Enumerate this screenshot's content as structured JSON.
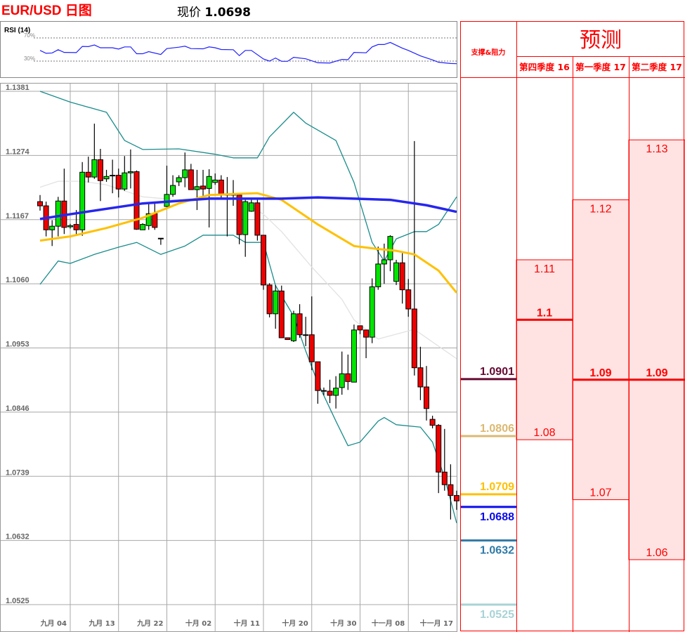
{
  "header": {
    "title": "EUR/USD 日图",
    "price_label": "现价",
    "price_value": "1.0698"
  },
  "rsi": {
    "label": "RSI (14)",
    "levels": [
      {
        "value": 70,
        "label": "70%"
      },
      {
        "value": 30,
        "label": "30%"
      }
    ],
    "color": "#2020ff",
    "points": [
      [
        1,
        48.4
      ],
      [
        2,
        43.5
      ],
      [
        3,
        44
      ],
      [
        4,
        49.6
      ],
      [
        5,
        45
      ],
      [
        7,
        44.7
      ],
      [
        8,
        55.3
      ],
      [
        9,
        55
      ],
      [
        10,
        57.8
      ],
      [
        11,
        53
      ],
      [
        13,
        53
      ],
      [
        14,
        50.8
      ],
      [
        15,
        54.5
      ],
      [
        16,
        54.5
      ],
      [
        17,
        42.7
      ],
      [
        18,
        42.7
      ],
      [
        19,
        46.3
      ],
      [
        21,
        41.4
      ],
      [
        22,
        51.6
      ],
      [
        24,
        54
      ],
      [
        25,
        55.7
      ],
      [
        26,
        51.6
      ],
      [
        28,
        51.2
      ],
      [
        29,
        54.5
      ],
      [
        30,
        53
      ],
      [
        31,
        50
      ],
      [
        33,
        49.6
      ],
      [
        34,
        39.4
      ],
      [
        35,
        48.4
      ],
      [
        36,
        48.4
      ],
      [
        38,
        33.7
      ],
      [
        39,
        30
      ],
      [
        40,
        35.3
      ],
      [
        41,
        29.6
      ],
      [
        42,
        29.6
      ],
      [
        43,
        36.5
      ],
      [
        45,
        34
      ],
      [
        47,
        27.1
      ],
      [
        49,
        26.7
      ],
      [
        51,
        32.9
      ],
      [
        52,
        32.4
      ],
      [
        53,
        45
      ],
      [
        55,
        44.3
      ],
      [
        56,
        54.5
      ],
      [
        57,
        58.6
      ],
      [
        58,
        58.6
      ],
      [
        59,
        62.2
      ],
      [
        61,
        52.4
      ],
      [
        62,
        48.4
      ],
      [
        64,
        39
      ],
      [
        66,
        32
      ],
      [
        67,
        28
      ],
      [
        69,
        25.9
      ],
      [
        70,
        25.5
      ]
    ]
  },
  "chart_data": {
    "type": "candlestick",
    "ylim": [
      1.0525,
      1.1381
    ],
    "yticks": [
      "1.1381",
      "1.1274",
      "1.1167",
      "1.1060",
      "1.0953",
      "1.0846",
      "1.0739",
      "1.0632",
      "1.0525"
    ],
    "xticks": [
      {
        "candle": 6,
        "label": "九月 04"
      },
      {
        "candle": 14,
        "label": "九月 13"
      },
      {
        "candle": 22,
        "label": "九月 22"
      },
      {
        "candle": 30,
        "label": "十月 02"
      },
      {
        "candle": 38,
        "label": "十月 11"
      },
      {
        "candle": 46,
        "label": "十月 20"
      },
      {
        "candle": 54,
        "label": "十月 30"
      },
      {
        "candle": 62,
        "label": "十一月 08"
      },
      {
        "candle": 70,
        "label": "十一月 17"
      }
    ],
    "grid": true,
    "candle_fields": [
      "open",
      "high",
      "low",
      "close"
    ],
    "up_color": "#00e600",
    "down_color": "#ee0000",
    "candles": [
      [
        1.1197,
        1.1208,
        1.1182,
        1.119
      ],
      [
        1.119,
        1.1197,
        1.1139,
        1.115
      ],
      [
        1.115,
        1.1166,
        1.1123,
        1.1156
      ],
      [
        1.1156,
        1.1205,
        1.1139,
        1.1198
      ],
      [
        1.1198,
        1.1252,
        1.1143,
        1.1154
      ],
      [
        1.1155,
        1.116,
        1.1152,
        1.1157
      ],
      [
        1.1159,
        1.1183,
        1.114,
        1.115
      ],
      [
        1.115,
        1.1263,
        1.114,
        1.1246
      ],
      [
        1.1246,
        1.1272,
        1.1229,
        1.1238
      ],
      [
        1.1238,
        1.1327,
        1.1235,
        1.1267
      ],
      [
        1.1267,
        1.1285,
        1.1198,
        1.1232
      ],
      [
        1.1235,
        1.125,
        1.123,
        1.1239
      ],
      [
        1.1241,
        1.1267,
        1.1211,
        1.124
      ],
      [
        1.1241,
        1.1252,
        1.1204,
        1.1218
      ],
      [
        1.1218,
        1.1273,
        1.1215,
        1.1245
      ],
      [
        1.1245,
        1.1284,
        1.1219,
        1.1247
      ],
      [
        1.1247,
        1.1249,
        1.115,
        1.1151
      ],
      [
        1.115,
        1.1161,
        1.115,
        1.1159
      ],
      [
        1.1157,
        1.1196,
        1.115,
        1.1177
      ],
      [
        1.1177,
        1.1196,
        1.115,
        1.1154
      ],
      [
        1.1136,
        1.1136,
        1.1125,
        1.1136
      ],
      [
        1.1189,
        1.1257,
        1.1185,
        1.1209
      ],
      [
        1.1209,
        1.1241,
        1.1205,
        1.1224
      ],
      [
        1.123,
        1.1241,
        1.1223,
        1.1237
      ],
      [
        1.1237,
        1.1279,
        1.1221,
        1.125
      ],
      [
        1.125,
        1.126,
        1.1217,
        1.1217
      ],
      [
        1.1217,
        1.125,
        1.1183,
        1.1222
      ],
      [
        1.1223,
        1.125,
        1.1205,
        1.1218
      ],
      [
        1.1219,
        1.1251,
        1.1154,
        1.1239
      ],
      [
        1.1229,
        1.1244,
        1.1225,
        1.1233
      ],
      [
        1.1233,
        1.1241,
        1.1202,
        1.1209
      ],
      [
        1.1209,
        1.1238,
        1.1139,
        1.1208
      ],
      [
        1.1209,
        1.1233,
        1.119,
        1.1208
      ],
      [
        1.1208,
        1.1209,
        1.1126,
        1.1142
      ],
      [
        1.1142,
        1.12,
        1.1105,
        1.1197
      ],
      [
        1.1181,
        1.12,
        1.118,
        1.1195
      ],
      [
        1.1195,
        1.12,
        1.1132,
        1.1141
      ],
      [
        1.1141,
        1.1141,
        1.105,
        1.1058
      ],
      [
        1.1058,
        1.1061,
        1.1004,
        1.101
      ],
      [
        1.101,
        1.1058,
        1.0985,
        1.1048
      ],
      [
        1.1048,
        1.1057,
        1.097,
        1.097
      ],
      [
        1.097,
        1.097,
        1.0967,
        1.0967
      ],
      [
        1.0965,
        1.1015,
        1.0963,
        1.101
      ],
      [
        1.101,
        1.1026,
        1.097,
        1.0975
      ],
      [
        1.0975,
        1.1005,
        1.0956,
        1.0974
      ],
      [
        1.0975,
        1.1039,
        1.0916,
        1.093
      ],
      [
        1.093,
        1.093,
        1.086,
        1.0882
      ],
      [
        1.0882,
        1.0887,
        1.0874,
        1.0881
      ],
      [
        1.0881,
        1.09,
        1.0861,
        1.0874
      ],
      [
        1.0874,
        1.0906,
        1.0852,
        1.0886
      ],
      [
        1.0887,
        1.0947,
        1.0875,
        1.091
      ],
      [
        1.091,
        1.0942,
        1.0883,
        1.0897
      ],
      [
        1.0896,
        1.0992,
        1.0896,
        1.0983
      ],
      [
        1.099,
        1.099,
        1.0976,
        1.0983
      ],
      [
        1.0983,
        1.0983,
        1.0936,
        1.0971
      ],
      [
        1.0971,
        1.1069,
        1.0961,
        1.1055
      ],
      [
        1.1055,
        1.1122,
        1.105,
        1.1093
      ],
      [
        1.1093,
        1.1127,
        1.106,
        1.11
      ],
      [
        1.11,
        1.1141,
        1.1081,
        1.1139
      ],
      [
        1.1064,
        1.11,
        1.1058,
        1.1095
      ],
      [
        1.1095,
        1.1111,
        1.1027,
        1.105
      ],
      [
        1.105,
        1.1068,
        1.1005,
        1.1018
      ],
      [
        1.1018,
        1.1298,
        1.0907,
        1.092
      ],
      [
        1.092,
        1.0955,
        1.0866,
        1.0888
      ],
      [
        1.0888,
        1.0923,
        1.0832,
        1.0852
      ],
      [
        1.0834,
        1.084,
        1.0819,
        1.0824
      ],
      [
        1.0824,
        1.0826,
        1.0711,
        1.0746
      ],
      [
        1.0746,
        1.0818,
        1.0715,
        1.0725
      ],
      [
        1.0725,
        1.0759,
        1.0667,
        1.0707
      ],
      [
        1.0707,
        1.0715,
        1.0683,
        1.0698
      ]
    ],
    "overlays": [
      {
        "color": "#1a8c8c",
        "width": 1.3,
        "points": [
          [
            1,
            1.1381
          ],
          [
            6,
            1.1363
          ],
          [
            12,
            1.1346
          ],
          [
            15,
            1.1299
          ],
          [
            18,
            1.1284
          ],
          [
            24,
            1.1285
          ],
          [
            30,
            1.1276
          ],
          [
            33,
            1.127
          ],
          [
            37,
            1.127
          ],
          [
            39,
            1.1305
          ],
          [
            43,
            1.1346
          ],
          [
            45,
            1.1328
          ],
          [
            50,
            1.1299
          ],
          [
            53,
            1.1229
          ],
          [
            56,
            1.1129
          ],
          [
            58,
            1.1098
          ],
          [
            60,
            1.1135
          ],
          [
            63,
            1.1147
          ],
          [
            65,
            1.1147
          ],
          [
            67,
            1.1159
          ],
          [
            70,
            1.1205
          ]
        ]
      },
      {
        "color": "#1a8c8c",
        "width": 1.3,
        "points": [
          [
            1,
            1.1059
          ],
          [
            4,
            1.1098
          ],
          [
            6,
            1.1094
          ],
          [
            10,
            1.1109
          ],
          [
            14,
            1.1121
          ],
          [
            17,
            1.1129
          ],
          [
            21,
            1.1109
          ],
          [
            25,
            1.1123
          ],
          [
            28,
            1.1141
          ],
          [
            33,
            1.1141
          ],
          [
            35,
            1.1129
          ],
          [
            38,
            1.1129
          ],
          [
            40,
            1.1057
          ],
          [
            43,
            1.1006
          ],
          [
            45,
            1.0948
          ],
          [
            47,
            1.0895
          ],
          [
            50,
            1.0831
          ],
          [
            52,
            1.079
          ],
          [
            54,
            1.0796
          ],
          [
            57,
            1.0831
          ],
          [
            58,
            1.0837
          ],
          [
            60,
            1.0825
          ],
          [
            64,
            1.0821
          ],
          [
            66,
            1.0796
          ],
          [
            68,
            1.0737
          ],
          [
            70,
            1.0661
          ]
        ]
      },
      {
        "color": "#e2e2e2",
        "width": 1.3,
        "points": [
          [
            1,
            1.1221
          ],
          [
            4,
            1.1231
          ],
          [
            8,
            1.1231
          ],
          [
            12,
            1.1225
          ],
          [
            18,
            1.1205
          ],
          [
            24,
            1.12
          ],
          [
            30,
            1.1205
          ],
          [
            34,
            1.12
          ],
          [
            38,
            1.1176
          ],
          [
            41,
            1.1147
          ],
          [
            46,
            1.1088
          ],
          [
            51,
            1.1034
          ],
          [
            53,
            1.1
          ],
          [
            57,
            1.0968
          ],
          [
            63,
            1.0984
          ],
          [
            70,
            1.0935
          ]
        ]
      },
      {
        "color": "#ffc000",
        "width": 3,
        "points": [
          [
            1,
            1.1132
          ],
          [
            6,
            1.1139
          ],
          [
            12,
            1.1153
          ],
          [
            18,
            1.117
          ],
          [
            24,
            1.1194
          ],
          [
            29,
            1.1208
          ],
          [
            34,
            1.121
          ],
          [
            37,
            1.1211
          ],
          [
            41,
            1.12
          ],
          [
            47,
            1.1159
          ],
          [
            53,
            1.1123
          ],
          [
            57,
            1.1118
          ],
          [
            60,
            1.1115
          ],
          [
            63,
            1.1109
          ],
          [
            67,
            1.1082
          ],
          [
            70,
            1.1045
          ]
        ]
      },
      {
        "color": "#2626ee",
        "width": 3.5,
        "points": [
          [
            1,
            1.1168
          ],
          [
            6,
            1.1176
          ],
          [
            18,
            1.1194
          ],
          [
            29,
            1.1202
          ],
          [
            41,
            1.1202
          ],
          [
            47,
            1.1204
          ],
          [
            53,
            1.1202
          ],
          [
            59,
            1.12
          ],
          [
            65,
            1.1191
          ],
          [
            70,
            1.118
          ]
        ]
      }
    ]
  },
  "panel": {
    "sr_header": "支撑&阻力",
    "forecast_header": "预测",
    "border_color": "#ff0000",
    "levels": [
      {
        "value": "1.0901",
        "color": "#640a32"
      },
      {
        "value": "1.0806",
        "color": "#dcb972"
      },
      {
        "value": "1.0709",
        "color": "#ffc000"
      },
      {
        "value": "1.0688",
        "color": "#0a0aee"
      },
      {
        "value": "1.0632",
        "color": "#2e7aa6"
      },
      {
        "value": "1.0525",
        "color": "#a9d3d6"
      }
    ],
    "forecasts": [
      {
        "quarter": "第四季度 16",
        "high": "1.11",
        "mid": "1.1",
        "low": "1.08"
      },
      {
        "quarter": "第一季度 17",
        "high": "1.12",
        "mid": "1.09",
        "low": "1.07"
      },
      {
        "quarter": "第二季度 17",
        "high": "1.13",
        "mid": "1.09",
        "low": "1.06"
      }
    ]
  }
}
